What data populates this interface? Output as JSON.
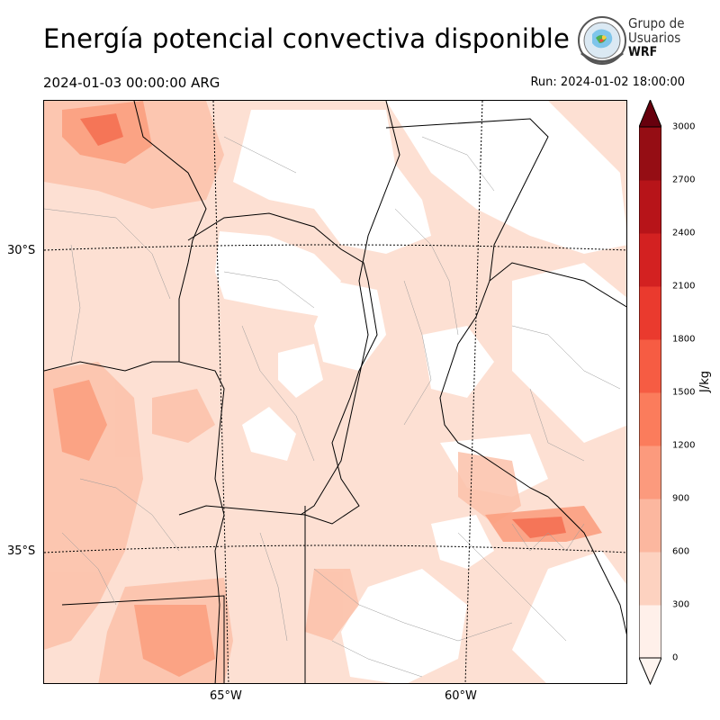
{
  "title": "Energía potencial convectiva disponible",
  "valid_time": "2024-01-03 00:00:00 ARG",
  "run_time": "Run: 2024-01-02 18:00:00",
  "logo": {
    "line1": "Grupo de",
    "line2": "Usuarios",
    "line3": "WRF"
  },
  "axes": {
    "lat_labels": [
      "30°S",
      "35°S"
    ],
    "lon_labels": [
      "65°W",
      "60°W"
    ]
  },
  "colorbar": {
    "units": "J/kg",
    "ticks": [
      "3000",
      "2700",
      "2400",
      "2100",
      "1800",
      "1500",
      "1200",
      "900",
      "600",
      "300",
      "0"
    ],
    "colors": [
      "#fff0ea",
      "#fdd2c0",
      "#fcb79f",
      "#fc9a7d",
      "#fb7c5c",
      "#f65c43",
      "#ea3a2e",
      "#d32121",
      "#b71419",
      "#950d14",
      "#6f0310"
    ],
    "extend_top_color": "#67000d",
    "extend_bottom_color": "#fff5f0"
  }
}
